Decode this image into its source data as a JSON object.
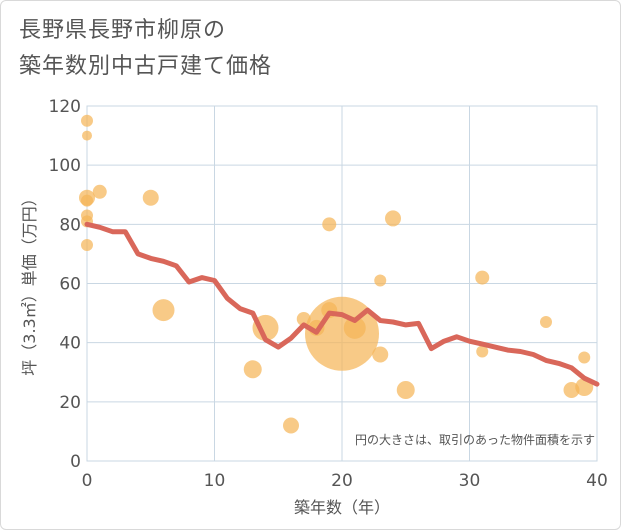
{
  "title_line1": "長野県長野市柳原の",
  "title_line2": "築年数別中古戸建て価格",
  "note": "円の大きさは、取引のあった物件面積を示す",
  "colors": {
    "bubble": "#f5b659",
    "line": "#d9675a",
    "grid": "#c9d7e3",
    "text": "#555555"
  },
  "chart_data": {
    "type": "scatter",
    "xlabel": "築年数（年）",
    "ylabel": "坪（3.3㎡）単価（万円）",
    "xlim": [
      0,
      40
    ],
    "ylim": [
      0,
      120
    ],
    "xticks": [
      "0",
      "10",
      "20",
      "30",
      "40"
    ],
    "yticks": [
      "0",
      "20",
      "40",
      "60",
      "80",
      "100",
      "120"
    ],
    "grid": true,
    "bubbles": [
      {
        "x": 0,
        "y": 115,
        "s": 6
      },
      {
        "x": 0,
        "y": 110,
        "s": 5
      },
      {
        "x": 0,
        "y": 89,
        "s": 8
      },
      {
        "x": 0,
        "y": 88,
        "s": 6
      },
      {
        "x": 0,
        "y": 83,
        "s": 6
      },
      {
        "x": 0,
        "y": 81,
        "s": 6
      },
      {
        "x": 0,
        "y": 73,
        "s": 6
      },
      {
        "x": 1,
        "y": 91,
        "s": 7
      },
      {
        "x": 5,
        "y": 89,
        "s": 8
      },
      {
        "x": 6,
        "y": 51,
        "s": 11
      },
      {
        "x": 13,
        "y": 31,
        "s": 9
      },
      {
        "x": 14,
        "y": 45,
        "s": 13
      },
      {
        "x": 16,
        "y": 12,
        "s": 8
      },
      {
        "x": 17,
        "y": 48,
        "s": 7
      },
      {
        "x": 18,
        "y": 45,
        "s": 8
      },
      {
        "x": 19,
        "y": 80,
        "s": 7
      },
      {
        "x": 19,
        "y": 51,
        "s": 8
      },
      {
        "x": 20,
        "y": 43,
        "s": 37
      },
      {
        "x": 21,
        "y": 45,
        "s": 11
      },
      {
        "x": 23,
        "y": 61,
        "s": 6
      },
      {
        "x": 23,
        "y": 36,
        "s": 8
      },
      {
        "x": 24,
        "y": 82,
        "s": 8
      },
      {
        "x": 25,
        "y": 24,
        "s": 9
      },
      {
        "x": 31,
        "y": 62,
        "s": 7
      },
      {
        "x": 31,
        "y": 37,
        "s": 6
      },
      {
        "x": 36,
        "y": 47,
        "s": 6
      },
      {
        "x": 38,
        "y": 24,
        "s": 8
      },
      {
        "x": 39,
        "y": 35,
        "s": 6
      },
      {
        "x": 39,
        "y": 25,
        "s": 9
      }
    ],
    "line": {
      "x": [
        0,
        1,
        2,
        3,
        4,
        5,
        6,
        7,
        8,
        9,
        10,
        11,
        12,
        13,
        14,
        15,
        16,
        17,
        18,
        19,
        20,
        21,
        22,
        23,
        24,
        25,
        26,
        27,
        28,
        29,
        30,
        31,
        32,
        33,
        34,
        35,
        36,
        37,
        38,
        39,
        40
      ],
      "y": [
        80,
        79,
        77.5,
        77.5,
        70,
        68.5,
        67.5,
        66,
        60.5,
        62,
        61,
        55,
        51.5,
        50,
        41,
        38.5,
        41.5,
        46,
        43.5,
        50,
        49.5,
        47.5,
        51,
        47.5,
        47,
        46,
        46.5,
        38,
        40.5,
        42,
        40.5,
        39.5,
        38.5,
        37.5,
        37,
        36,
        34,
        33,
        31.5,
        28,
        26
      ]
    }
  }
}
